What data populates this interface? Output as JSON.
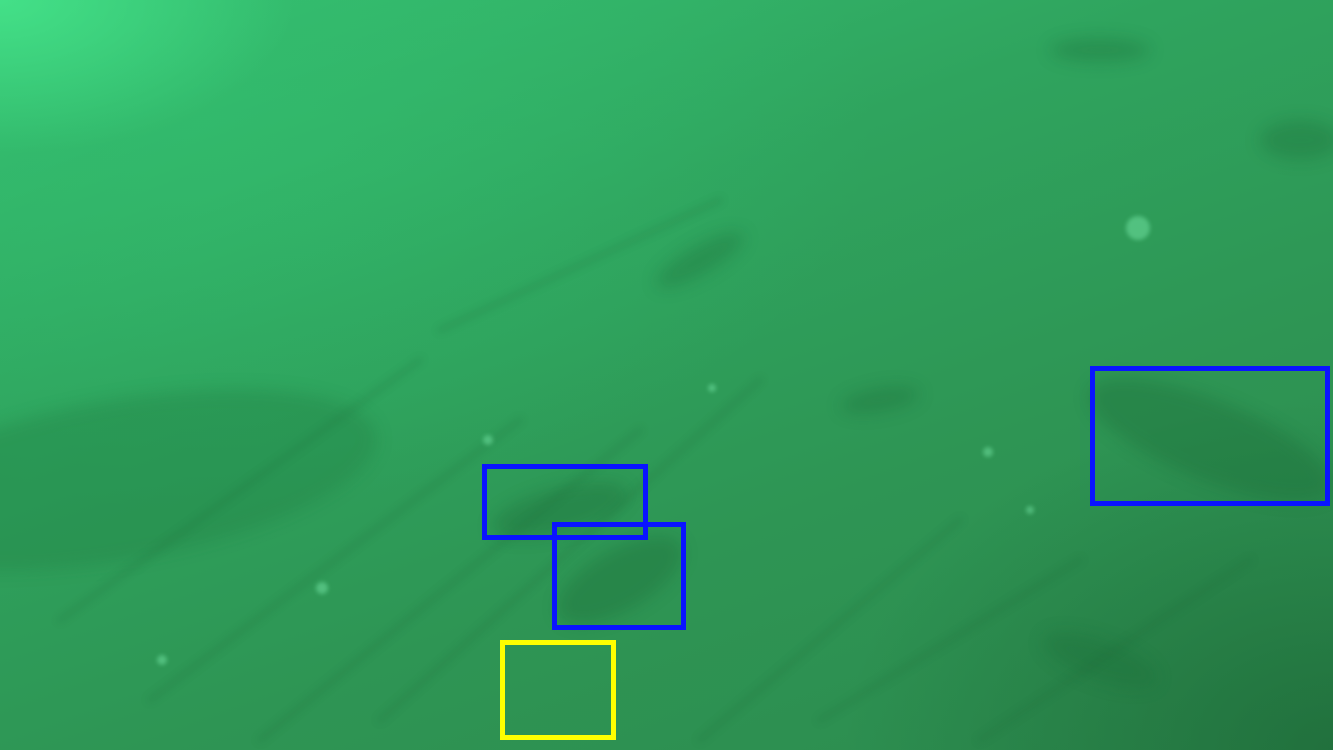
{
  "scene": {
    "description_icon": "underwater-seabed-photo",
    "water_color": "#2f9a57"
  },
  "annotations": {
    "colors": {
      "blue": "#0a14ff",
      "yellow": "#ffff00"
    },
    "boxes": [
      {
        "color_key": "blue"
      },
      {
        "color_key": "blue"
      },
      {
        "color_key": "blue"
      },
      {
        "color_key": "yellow"
      }
    ]
  }
}
